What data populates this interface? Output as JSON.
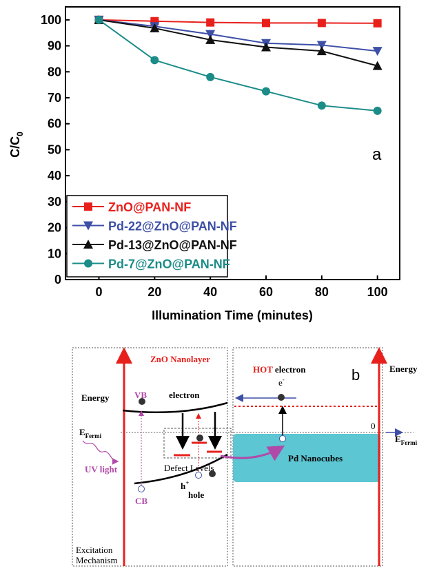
{
  "chart_data": {
    "type": "line",
    "y_label": "C/C",
    "y_label_subscript": "0",
    "x_label": "Illumination Time (minutes)",
    "annotation": "a",
    "x": [
      0,
      20,
      40,
      60,
      80,
      100
    ],
    "series": [
      {
        "name": "ZnO@PAN-NF",
        "color": "#e8201c",
        "marker": "square",
        "values": [
          100,
          99.5,
          99,
          98.8,
          98.8,
          98.7
        ]
      },
      {
        "name": "Pd-22@ZnO@PAN-NF",
        "color": "#3d4fa6",
        "marker": "triangle-down",
        "values": [
          100,
          97.5,
          94.5,
          91,
          90.3,
          88
        ]
      },
      {
        "name": "Pd-13@ZnO@PAN-NF",
        "color": "#111111",
        "marker": "triangle-up",
        "values": [
          100,
          96.8,
          92.3,
          89.5,
          88,
          82.3
        ]
      },
      {
        "name": "Pd-7@ZnO@PAN-NF",
        "color": "#1b8c88",
        "marker": "circle",
        "values": [
          100,
          84.5,
          78,
          72.5,
          67,
          65
        ]
      }
    ],
    "xlim": [
      -12,
      108
    ],
    "xticks": [
      0,
      20,
      40,
      60,
      80,
      100
    ],
    "ylim": [
      0,
      105
    ],
    "yticks": [
      0,
      10,
      20,
      30,
      40,
      50,
      60,
      70,
      80,
      90,
      100
    ],
    "legend": "lower left"
  },
  "diagram": {
    "panel_label": "b",
    "left_title": "ZnO Nanolayer",
    "hot": "HOT",
    "hot_rest": "electron",
    "electron_symbol": "e",
    "electron_charge": "-",
    "energy_left": "Energy",
    "energy_right": "Energy",
    "vb": "VB",
    "electron": "electron",
    "fermi_left": {
      "symbol": "E",
      "subscript": "Fermi"
    },
    "fermi_right": {
      "symbol": "E",
      "subscript": "Fermi"
    },
    "zero": "0",
    "defect_levels": "Defect Levels",
    "pd": "Pd Nanocubes",
    "uv": "UV light",
    "cb": "CB",
    "hole_symbol": "h",
    "hole_charge": "+",
    "hole": "hole",
    "mechanism": [
      "Excitation",
      "Mechanism"
    ]
  }
}
